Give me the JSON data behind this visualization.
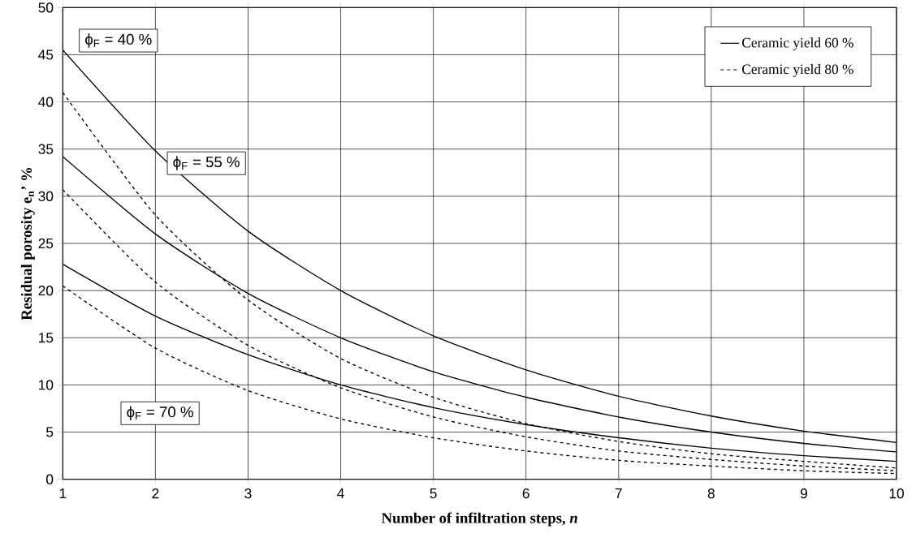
{
  "chart_data": {
    "type": "line",
    "xlabel": "Number of infiltration steps, *n*",
    "ylabel": "Residual porosity e$_{n}$’ %",
    "x": [
      1,
      2,
      3,
      4,
      5,
      6,
      7,
      8,
      9,
      10
    ],
    "series": [
      {
        "name": "Ceramic yield 60 %",
        "color": "#000000",
        "line_style": "solid",
        "values": [
          45.5,
          34.8,
          26.3,
          20.0,
          15.2,
          11.6,
          8.8,
          6.7,
          5.1,
          3.9
        ]
      },
      {
        "color": "#000000",
        "line_style": "solid",
        "values": [
          34.2,
          26.0,
          19.7,
          15.0,
          11.4,
          8.7,
          6.6,
          5.0,
          3.8,
          2.9
        ]
      },
      {
        "color": "#000000",
        "line_style": "solid",
        "values": [
          22.8,
          17.3,
          13.2,
          10.0,
          7.6,
          5.8,
          4.4,
          3.3,
          2.5,
          1.9
        ]
      },
      {
        "name": "Ceramic yield 80 %",
        "color": "#000000",
        "line_style": "dashed",
        "values": [
          41.0,
          28.0,
          19.0,
          12.8,
          8.7,
          5.9,
          4.0,
          2.7,
          1.9,
          1.2
        ]
      },
      {
        "color": "#000000",
        "line_style": "dashed",
        "values": [
          30.7,
          20.9,
          14.2,
          9.7,
          6.6,
          4.5,
          3.0,
          2.1,
          1.4,
          0.9
        ]
      },
      {
        "color": "#000000",
        "line_style": "dashed",
        "values": [
          20.5,
          13.9,
          9.4,
          6.4,
          4.4,
          3.0,
          2.0,
          1.4,
          0.9,
          0.6
        ]
      }
    ],
    "annotations": [
      "ϕ$_{F}$ = 40 %",
      "ϕ$_{F}$ = 55 %",
      "ϕ$_{F}$ = 70 %"
    ],
    "xlim": [
      1,
      10
    ],
    "xticks": [
      1,
      2,
      3,
      4,
      5,
      6,
      7,
      8,
      9,
      10
    ],
    "ylim": [
      0,
      50
    ],
    "yticks": [
      0,
      5,
      10,
      15,
      20,
      25,
      30,
      35,
      40,
      45,
      50
    ],
    "grid": true,
    "legend": "top right",
    "marker": "none"
  }
}
